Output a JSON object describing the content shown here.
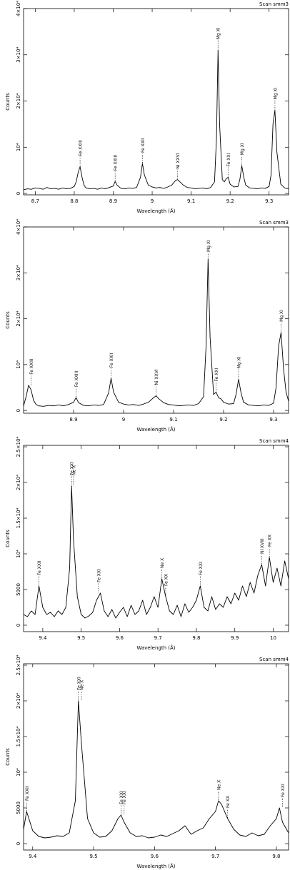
{
  "chart_data": [
    {
      "type": "line",
      "title": "Scan smm3",
      "xlabel": "Wavelength (Å)",
      "ylabel": "Counts",
      "color": "#000000",
      "xlim": [
        8.67,
        9.35
      ],
      "ylim": [
        -300,
        40000
      ],
      "xticks": [
        8.7,
        8.8,
        8.9,
        9,
        9.1,
        9.2,
        9.3
      ],
      "yticks": [
        0,
        {
          "value": 10000,
          "label": "10⁴"
        },
        {
          "value": 20000,
          "label": "2×10⁴"
        },
        {
          "value": 30000,
          "label": "3×10⁴"
        },
        {
          "value": 40000,
          "label": "4×10⁴"
        }
      ],
      "x": [
        8.67,
        8.68,
        8.69,
        8.7,
        8.71,
        8.72,
        8.73,
        8.74,
        8.75,
        8.76,
        8.77,
        8.78,
        8.79,
        8.8,
        8.805,
        8.81,
        8.815,
        8.82,
        8.825,
        8.83,
        8.84,
        8.85,
        8.86,
        8.87,
        8.88,
        8.89,
        8.9,
        8.905,
        8.91,
        8.92,
        8.93,
        8.94,
        8.95,
        8.96,
        8.97,
        8.975,
        8.98,
        8.99,
        9.0,
        9.01,
        9.02,
        9.03,
        9.04,
        9.05,
        9.06,
        9.065,
        9.07,
        9.08,
        9.09,
        9.1,
        9.11,
        9.12,
        9.13,
        9.14,
        9.15,
        9.16,
        9.165,
        9.169,
        9.173,
        9.18,
        9.185,
        9.19,
        9.195,
        9.2,
        9.21,
        9.22,
        9.225,
        9.23,
        9.235,
        9.24,
        9.25,
        9.26,
        9.27,
        9.28,
        9.29,
        9.3,
        9.305,
        9.31,
        9.315,
        9.32,
        9.33,
        9.34,
        9.35
      ],
      "values": [
        800,
        1000,
        900,
        1200,
        1100,
        900,
        1300,
        1000,
        1100,
        900,
        1200,
        1000,
        1100,
        1500,
        2500,
        4500,
        5800,
        3500,
        1800,
        1200,
        1000,
        1100,
        900,
        1200,
        1000,
        1300,
        1600,
        2600,
        1800,
        1100,
        1000,
        1200,
        1100,
        1300,
        3500,
        6500,
        4000,
        1800,
        1400,
        1200,
        1300,
        1100,
        1400,
        1800,
        2800,
        3000,
        2600,
        1800,
        1300,
        1200,
        1000,
        1100,
        1200,
        1000,
        1300,
        2500,
        12000,
        31000,
        15000,
        3000,
        2500,
        3200,
        3500,
        2000,
        1400,
        1500,
        3000,
        6000,
        3500,
        1800,
        1200,
        1100,
        1000,
        1200,
        1100,
        1500,
        4000,
        15000,
        18000,
        9000,
        2000,
        1200,
        1000
      ],
      "annotations": [
        {
          "text": "Fe XXIII",
          "x": 8.815
        },
        {
          "text": "Fe XXIII",
          "x": 8.905
        },
        {
          "text": "Fe XXII",
          "x": 8.975
        },
        {
          "text": "Ni XXVI",
          "x": 9.065
        },
        {
          "text": "Mg XI",
          "x": 9.169
        },
        {
          "text": "Fe XXI",
          "x": 9.195
        },
        {
          "text": "Mg XI",
          "x": 9.23
        },
        {
          "text": "Mg XI",
          "x": 9.315
        }
      ]
    },
    {
      "type": "line",
      "title": "Scan smm3",
      "xlabel": "Wavelength (Å)",
      "ylabel": "Counts",
      "color": "#000000",
      "xlim": [
        8.8,
        9.33
      ],
      "ylim": [
        -600,
        40000
      ],
      "xticks": [
        8.9,
        9,
        9.1,
        9.2,
        9.3
      ],
      "yticks": [
        0,
        {
          "value": 10000,
          "label": "10⁴"
        },
        {
          "value": 20000,
          "label": "2×10⁴"
        },
        {
          "value": 30000,
          "label": "3×10⁴"
        },
        {
          "value": 40000,
          "label": "4×10⁴"
        }
      ],
      "x": [
        8.8,
        8.805,
        8.81,
        8.815,
        8.82,
        8.825,
        8.83,
        8.84,
        8.85,
        8.86,
        8.87,
        8.88,
        8.89,
        8.9,
        8.905,
        8.91,
        8.92,
        8.93,
        8.94,
        8.95,
        8.96,
        8.97,
        8.975,
        8.98,
        8.99,
        9.0,
        9.01,
        9.02,
        9.03,
        9.04,
        9.05,
        9.06,
        9.065,
        9.07,
        9.08,
        9.09,
        9.1,
        9.11,
        9.12,
        9.13,
        9.14,
        9.15,
        9.16,
        9.165,
        9.169,
        9.173,
        9.18,
        9.185,
        9.19,
        9.195,
        9.2,
        9.21,
        9.22,
        9.225,
        9.23,
        9.235,
        9.24,
        9.25,
        9.26,
        9.27,
        9.28,
        9.29,
        9.3,
        9.305,
        9.31,
        9.315,
        9.32,
        9.325,
        9.33
      ],
      "values": [
        1000,
        3000,
        5500,
        4500,
        2200,
        1300,
        1000,
        900,
        1100,
        1000,
        1200,
        1000,
        1300,
        1800,
        2800,
        1700,
        1100,
        1000,
        1200,
        1100,
        1300,
        3800,
        7000,
        4000,
        1800,
        1400,
        1200,
        1300,
        1100,
        1400,
        1800,
        2800,
        3200,
        2600,
        1700,
        1300,
        1200,
        1000,
        1100,
        1200,
        1100,
        1500,
        3000,
        14000,
        33000,
        16000,
        3500,
        4000,
        2800,
        2500,
        1800,
        1400,
        1500,
        3500,
        6800,
        3800,
        1800,
        1200,
        1100,
        1000,
        1200,
        1100,
        1600,
        5000,
        14000,
        17000,
        9000,
        4000,
        2000
      ],
      "annotations": [
        {
          "text": "Fe XXIII",
          "x": 8.815
        },
        {
          "text": "Fe XXIII",
          "x": 8.905
        },
        {
          "text": "Fe XXII",
          "x": 8.975
        },
        {
          "text": "Ni XXVI",
          "x": 9.065
        },
        {
          "text": "Mg XI",
          "x": 9.169
        },
        {
          "text": "Fe XXI",
          "x": 9.185
        },
        {
          "text": "Mg XI",
          "x": 9.23
        },
        {
          "text": "Mg XI",
          "x": 9.315
        }
      ]
    },
    {
      "type": "line",
      "title": "Scan smm4",
      "xlabel": "Wavelength (Å)",
      "ylabel": "Counts",
      "color": "#000000",
      "xlim": [
        9.35,
        10.04
      ],
      "ylim": [
        -900,
        25200
      ],
      "xticks": [
        9.4,
        9.5,
        9.6,
        9.7,
        9.8,
        9.9,
        10
      ],
      "yticks": [
        0,
        5000,
        {
          "value": 10000,
          "label": "10⁴"
        },
        {
          "value": 15000,
          "label": "1.5×10⁴"
        },
        {
          "value": 20000,
          "label": "2×10⁴"
        },
        {
          "value": 25000,
          "label": "2.5×10⁴"
        }
      ],
      "x": [
        9.35,
        9.36,
        9.37,
        9.38,
        9.39,
        9.4,
        9.41,
        9.42,
        9.43,
        9.44,
        9.45,
        9.46,
        9.47,
        9.475,
        9.48,
        9.49,
        9.5,
        9.51,
        9.52,
        9.53,
        9.54,
        9.55,
        9.56,
        9.57,
        9.58,
        9.59,
        9.6,
        9.61,
        9.62,
        9.63,
        9.64,
        9.65,
        9.66,
        9.67,
        9.68,
        9.69,
        9.7,
        9.71,
        9.72,
        9.73,
        9.74,
        9.75,
        9.76,
        9.77,
        9.78,
        9.79,
        9.8,
        9.81,
        9.82,
        9.83,
        9.84,
        9.85,
        9.86,
        9.87,
        9.88,
        9.89,
        9.9,
        9.91,
        9.92,
        9.93,
        9.94,
        9.95,
        9.96,
        9.97,
        9.98,
        9.99,
        10.0,
        10.01,
        10.02,
        10.03,
        10.04
      ],
      "values": [
        1500,
        1200,
        2000,
        1500,
        5500,
        2500,
        1500,
        1800,
        1200,
        2000,
        1500,
        2500,
        8000,
        19500,
        12000,
        4000,
        1500,
        1000,
        1300,
        1800,
        3500,
        4500,
        2000,
        1200,
        2200,
        1000,
        1800,
        2500,
        1200,
        2800,
        1500,
        2000,
        3500,
        1500,
        2500,
        4000,
        2500,
        6500,
        4000,
        2000,
        1500,
        2800,
        1200,
        3000,
        1800,
        2500,
        3500,
        5500,
        2500,
        2000,
        4000,
        2200,
        3000,
        2500,
        4000,
        3000,
        4500,
        3500,
        5500,
        4000,
        6000,
        4500,
        7000,
        8500,
        5500,
        9500,
        6000,
        8000,
        5500,
        9000,
        6500
      ],
      "annotations": [
        {
          "text": "Fe XXII",
          "x": 9.39
        },
        {
          "text": "Fe XXI",
          "x": 9.475
        },
        {
          "text": "Ne X",
          "x": 9.48
        },
        {
          "text": "Fe XXI",
          "x": 9.545
        },
        {
          "text": "Ne X",
          "x": 9.71
        },
        {
          "text": "Fe XX",
          "x": 9.72
        },
        {
          "text": "Fe XXI",
          "x": 9.81
        },
        {
          "text": "Ni XVIII",
          "x": 9.97
        },
        {
          "text": "Fe XX",
          "x": 9.99
        }
      ]
    },
    {
      "type": "line",
      "title": "Scan smm4",
      "xlabel": "Wavelength (Å)",
      "ylabel": "Counts",
      "color": "#000000",
      "xlim": [
        9.385,
        9.82
      ],
      "ylim": [
        -900,
        25200
      ],
      "xticks": [
        9.4,
        9.5,
        9.6,
        9.7,
        9.8
      ],
      "yticks": [
        0,
        5000,
        {
          "value": 10000,
          "label": "10⁴"
        },
        {
          "value": 15000,
          "label": "1.5×10⁴"
        },
        {
          "value": 20000,
          "label": "2×10⁴"
        },
        {
          "value": 25000,
          "label": "2.5×10⁴"
        }
      ],
      "x": [
        9.385,
        9.39,
        9.4,
        9.41,
        9.42,
        9.43,
        9.44,
        9.45,
        9.46,
        9.47,
        9.475,
        9.48,
        9.49,
        9.5,
        9.51,
        9.52,
        9.53,
        9.54,
        9.545,
        9.55,
        9.56,
        9.57,
        9.58,
        9.59,
        9.6,
        9.61,
        9.62,
        9.63,
        9.64,
        9.65,
        9.66,
        9.67,
        9.68,
        9.69,
        9.7,
        9.705,
        9.71,
        9.72,
        9.73,
        9.74,
        9.75,
        9.76,
        9.77,
        9.78,
        9.79,
        9.8,
        9.805,
        9.81,
        9.82
      ],
      "values": [
        2000,
        4500,
        1800,
        1000,
        800,
        900,
        1100,
        1000,
        1500,
        6000,
        20000,
        14000,
        3500,
        1500,
        900,
        1000,
        1800,
        3500,
        4000,
        3000,
        1500,
        1000,
        1100,
        800,
        900,
        1200,
        1000,
        1400,
        1800,
        2500,
        1300,
        1800,
        2200,
        3500,
        4500,
        6000,
        5500,
        3500,
        2000,
        1200,
        1000,
        1500,
        1100,
        1300,
        2500,
        3500,
        5000,
        3000,
        1500
      ],
      "annotations": [
        {
          "text": "Fe XXII",
          "x": 9.39
        },
        {
          "text": "Fe XXI",
          "x": 9.475
        },
        {
          "text": "Ne X",
          "x": 9.48
        },
        {
          "text": "Fe XXI",
          "x": 9.545
        },
        {
          "text": "Fe XXI",
          "x": 9.55
        },
        {
          "text": "Ne X",
          "x": 9.705
        },
        {
          "text": "Fe XX",
          "x": 9.72
        },
        {
          "text": "Fe XXI",
          "x": 9.81
        }
      ]
    }
  ]
}
